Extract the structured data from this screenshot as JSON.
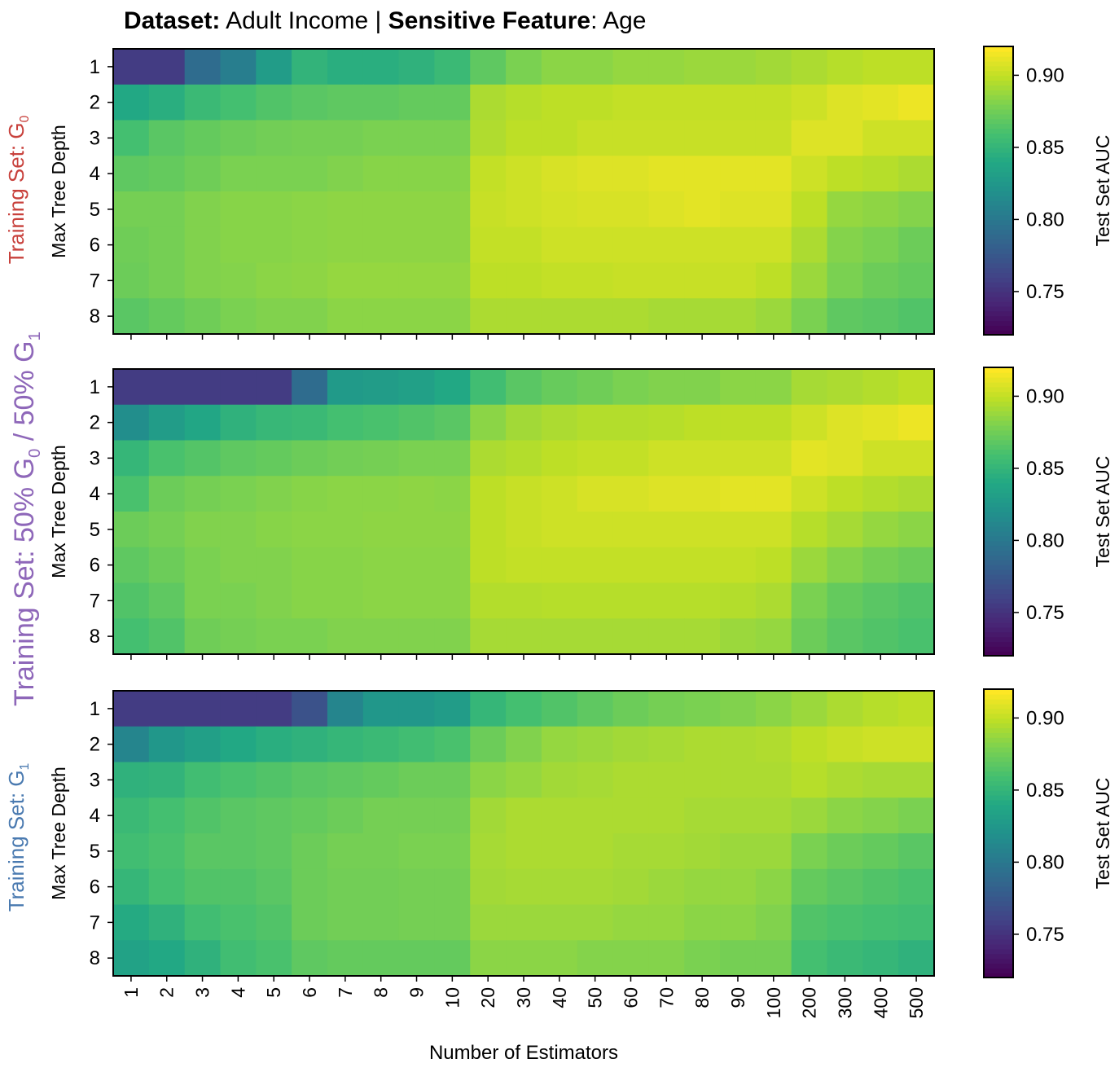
{
  "title": {
    "bold_1": "Dataset:",
    "text_1": "Adult Income |",
    "bold_2": "Sensitive Feature",
    "text_2": ": Age"
  },
  "x_axis_label": "Number of Estimators",
  "y_axis_label": "Max Tree Depth",
  "colorbar_label": "Test Set AUC",
  "colors": {
    "group0": "#c8413c",
    "mixed": "#8e67b9",
    "group1": "#4a7ab0"
  },
  "row_labels": [
    {
      "prefix": "Training Set: G",
      "sub": "0",
      "rest": ""
    },
    {
      "prefix": "Training Set: 50% G",
      "sub": "0",
      "rest": " / 50% G",
      "sub2": "1"
    },
    {
      "prefix": "Training Set: G",
      "sub": "1",
      "rest": ""
    }
  ],
  "chart_data": [
    {
      "type": "heatmap",
      "colormap": "viridis",
      "vmin": 0.72,
      "vmax": 0.92,
      "colorbar_ticks": [
        "0.75",
        "0.80",
        "0.85",
        "0.90"
      ],
      "x_categories": [
        "1",
        "2",
        "3",
        "4",
        "5",
        "6",
        "7",
        "8",
        "9",
        "10",
        "20",
        "30",
        "40",
        "50",
        "60",
        "70",
        "80",
        "90",
        "100",
        "200",
        "300",
        "400",
        "500"
      ],
      "y_categories": [
        "1",
        "2",
        "3",
        "4",
        "5",
        "6",
        "7",
        "8"
      ],
      "values": [
        [
          0.755,
          0.755,
          0.79,
          0.805,
          0.83,
          0.85,
          0.845,
          0.845,
          0.848,
          0.855,
          0.87,
          0.88,
          0.885,
          0.885,
          0.888,
          0.888,
          0.89,
          0.89,
          0.892,
          0.895,
          0.898,
          0.9,
          0.9
        ],
        [
          0.84,
          0.845,
          0.855,
          0.86,
          0.865,
          0.868,
          0.87,
          0.87,
          0.872,
          0.872,
          0.895,
          0.898,
          0.9,
          0.9,
          0.902,
          0.902,
          0.902,
          0.902,
          0.902,
          0.905,
          0.91,
          0.912,
          0.915
        ],
        [
          0.86,
          0.868,
          0.872,
          0.875,
          0.877,
          0.878,
          0.878,
          0.88,
          0.88,
          0.88,
          0.896,
          0.9,
          0.9,
          0.903,
          0.903,
          0.903,
          0.903,
          0.903,
          0.903,
          0.91,
          0.91,
          0.905,
          0.905
        ],
        [
          0.87,
          0.872,
          0.876,
          0.88,
          0.88,
          0.88,
          0.882,
          0.884,
          0.884,
          0.884,
          0.902,
          0.905,
          0.908,
          0.91,
          0.91,
          0.912,
          0.912,
          0.912,
          0.912,
          0.905,
          0.9,
          0.898,
          0.895
        ],
        [
          0.878,
          0.878,
          0.882,
          0.884,
          0.884,
          0.885,
          0.886,
          0.886,
          0.886,
          0.886,
          0.903,
          0.905,
          0.907,
          0.908,
          0.908,
          0.91,
          0.912,
          0.91,
          0.91,
          0.9,
          0.888,
          0.886,
          0.883
        ],
        [
          0.876,
          0.878,
          0.882,
          0.884,
          0.884,
          0.885,
          0.886,
          0.886,
          0.886,
          0.886,
          0.902,
          0.902,
          0.905,
          0.905,
          0.905,
          0.905,
          0.905,
          0.905,
          0.905,
          0.895,
          0.883,
          0.88,
          0.875
        ],
        [
          0.875,
          0.878,
          0.882,
          0.883,
          0.885,
          0.886,
          0.888,
          0.888,
          0.888,
          0.888,
          0.9,
          0.9,
          0.902,
          0.902,
          0.903,
          0.903,
          0.903,
          0.903,
          0.9,
          0.89,
          0.88,
          0.875,
          0.872
        ],
        [
          0.868,
          0.872,
          0.876,
          0.88,
          0.882,
          0.882,
          0.885,
          0.885,
          0.885,
          0.885,
          0.895,
          0.895,
          0.895,
          0.895,
          0.895,
          0.893,
          0.893,
          0.893,
          0.89,
          0.88,
          0.87,
          0.868,
          0.865
        ]
      ]
    },
    {
      "type": "heatmap",
      "colormap": "viridis",
      "vmin": 0.72,
      "vmax": 0.92,
      "colorbar_ticks": [
        "0.75",
        "0.80",
        "0.85",
        "0.90"
      ],
      "x_categories": [
        "1",
        "2",
        "3",
        "4",
        "5",
        "6",
        "7",
        "8",
        "9",
        "10",
        "20",
        "30",
        "40",
        "50",
        "60",
        "70",
        "80",
        "90",
        "100",
        "200",
        "300",
        "400",
        "500"
      ],
      "y_categories": [
        "1",
        "2",
        "3",
        "4",
        "5",
        "6",
        "7",
        "8"
      ],
      "values": [
        [
          0.755,
          0.755,
          0.755,
          0.755,
          0.755,
          0.79,
          0.828,
          0.83,
          0.833,
          0.84,
          0.858,
          0.868,
          0.873,
          0.876,
          0.88,
          0.882,
          0.882,
          0.885,
          0.885,
          0.893,
          0.895,
          0.897,
          0.9
        ],
        [
          0.818,
          0.83,
          0.838,
          0.848,
          0.853,
          0.855,
          0.86,
          0.862,
          0.865,
          0.868,
          0.885,
          0.892,
          0.895,
          0.897,
          0.897,
          0.898,
          0.9,
          0.9,
          0.9,
          0.905,
          0.91,
          0.912,
          0.915
        ],
        [
          0.852,
          0.862,
          0.866,
          0.87,
          0.872,
          0.875,
          0.877,
          0.878,
          0.88,
          0.88,
          0.895,
          0.897,
          0.9,
          0.902,
          0.902,
          0.905,
          0.905,
          0.905,
          0.905,
          0.912,
          0.91,
          0.905,
          0.905
        ],
        [
          0.862,
          0.875,
          0.878,
          0.88,
          0.882,
          0.884,
          0.885,
          0.885,
          0.886,
          0.885,
          0.9,
          0.903,
          0.905,
          0.908,
          0.908,
          0.91,
          0.91,
          0.912,
          0.912,
          0.905,
          0.9,
          0.897,
          0.895
        ],
        [
          0.875,
          0.878,
          0.882,
          0.882,
          0.884,
          0.885,
          0.885,
          0.886,
          0.886,
          0.886,
          0.9,
          0.903,
          0.905,
          0.905,
          0.905,
          0.905,
          0.905,
          0.905,
          0.905,
          0.898,
          0.893,
          0.888,
          0.885
        ],
        [
          0.87,
          0.875,
          0.88,
          0.882,
          0.882,
          0.884,
          0.884,
          0.885,
          0.885,
          0.885,
          0.9,
          0.902,
          0.902,
          0.902,
          0.902,
          0.902,
          0.902,
          0.902,
          0.9,
          0.89,
          0.883,
          0.878,
          0.875
        ],
        [
          0.865,
          0.87,
          0.88,
          0.88,
          0.882,
          0.884,
          0.884,
          0.885,
          0.885,
          0.885,
          0.897,
          0.897,
          0.898,
          0.898,
          0.898,
          0.898,
          0.898,
          0.897,
          0.895,
          0.88,
          0.872,
          0.868,
          0.865
        ],
        [
          0.86,
          0.865,
          0.876,
          0.878,
          0.88,
          0.88,
          0.882,
          0.882,
          0.882,
          0.882,
          0.893,
          0.893,
          0.893,
          0.893,
          0.893,
          0.893,
          0.893,
          0.89,
          0.888,
          0.875,
          0.868,
          0.865,
          0.862
        ]
      ]
    },
    {
      "type": "heatmap",
      "colormap": "viridis",
      "vmin": 0.72,
      "vmax": 0.92,
      "colorbar_ticks": [
        "0.75",
        "0.80",
        "0.85",
        "0.90"
      ],
      "x_categories": [
        "1",
        "2",
        "3",
        "4",
        "5",
        "6",
        "7",
        "8",
        "9",
        "10",
        "20",
        "30",
        "40",
        "50",
        "60",
        "70",
        "80",
        "90",
        "100",
        "200",
        "300",
        "400",
        "500"
      ],
      "y_categories": [
        "1",
        "2",
        "3",
        "4",
        "5",
        "6",
        "7",
        "8"
      ],
      "values": [
        [
          0.755,
          0.755,
          0.755,
          0.755,
          0.755,
          0.77,
          0.81,
          0.825,
          0.825,
          0.83,
          0.852,
          0.86,
          0.865,
          0.87,
          0.875,
          0.878,
          0.88,
          0.882,
          0.885,
          0.89,
          0.895,
          0.898,
          0.9
        ],
        [
          0.81,
          0.825,
          0.832,
          0.84,
          0.845,
          0.848,
          0.852,
          0.855,
          0.858,
          0.862,
          0.875,
          0.882,
          0.888,
          0.89,
          0.892,
          0.893,
          0.895,
          0.895,
          0.896,
          0.9,
          0.903,
          0.905,
          0.905
        ],
        [
          0.848,
          0.85,
          0.858,
          0.862,
          0.865,
          0.868,
          0.87,
          0.872,
          0.875,
          0.875,
          0.885,
          0.888,
          0.892,
          0.893,
          0.895,
          0.895,
          0.895,
          0.895,
          0.895,
          0.898,
          0.895,
          0.893,
          0.893
        ],
        [
          0.855,
          0.86,
          0.865,
          0.868,
          0.87,
          0.872,
          0.875,
          0.878,
          0.878,
          0.878,
          0.892,
          0.895,
          0.895,
          0.895,
          0.895,
          0.895,
          0.893,
          0.893,
          0.893,
          0.89,
          0.885,
          0.883,
          0.88
        ],
        [
          0.858,
          0.862,
          0.868,
          0.868,
          0.87,
          0.875,
          0.878,
          0.878,
          0.88,
          0.88,
          0.893,
          0.895,
          0.895,
          0.895,
          0.893,
          0.893,
          0.892,
          0.89,
          0.89,
          0.88,
          0.875,
          0.872,
          0.868
        ],
        [
          0.852,
          0.86,
          0.865,
          0.865,
          0.868,
          0.875,
          0.877,
          0.877,
          0.878,
          0.878,
          0.892,
          0.893,
          0.893,
          0.893,
          0.892,
          0.89,
          0.888,
          0.888,
          0.885,
          0.872,
          0.868,
          0.865,
          0.862
        ],
        [
          0.842,
          0.848,
          0.858,
          0.862,
          0.865,
          0.875,
          0.877,
          0.877,
          0.878,
          0.878,
          0.89,
          0.89,
          0.89,
          0.89,
          0.888,
          0.888,
          0.885,
          0.885,
          0.882,
          0.865,
          0.862,
          0.86,
          0.858
        ],
        [
          0.835,
          0.84,
          0.848,
          0.858,
          0.862,
          0.87,
          0.872,
          0.872,
          0.872,
          0.872,
          0.885,
          0.885,
          0.885,
          0.883,
          0.883,
          0.883,
          0.88,
          0.878,
          0.878,
          0.86,
          0.855,
          0.852,
          0.848
        ]
      ]
    }
  ]
}
